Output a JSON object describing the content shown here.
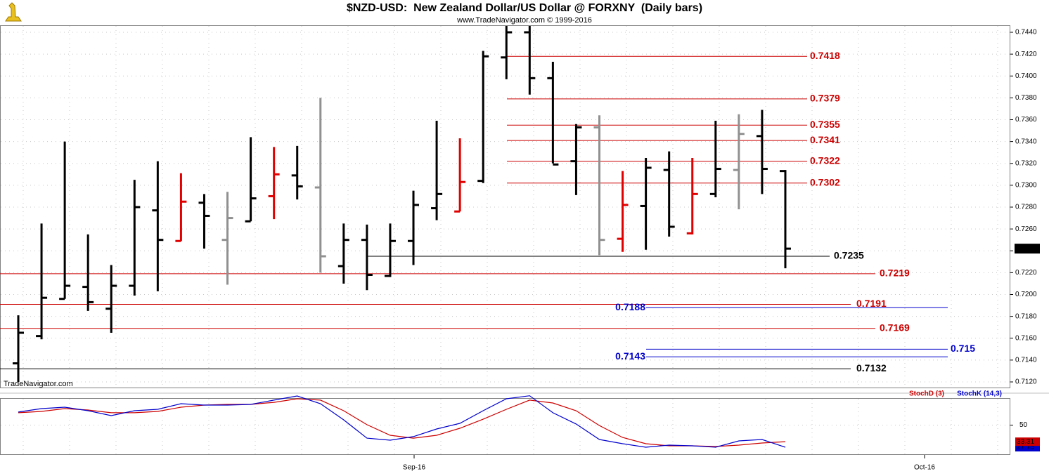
{
  "chart_data": {
    "type": "ohlc",
    "title": "$NZD-USD:  New Zealand Dollar/US Dollar @ FORXNY  (Daily bars)",
    "subtitle": "www.TradeNavigator.com © 1999-2016",
    "watermark": "TradeNavigator.com",
    "ylim": [
      0.712,
      0.744
    ],
    "yticks": [
      {
        "value": 0.712,
        "label": "0.7120"
      },
      {
        "value": 0.714,
        "label": "0.7140"
      },
      {
        "value": 0.716,
        "label": "0.7160"
      },
      {
        "value": 0.718,
        "label": "0.7180"
      },
      {
        "value": 0.72,
        "label": "0.7200"
      },
      {
        "value": 0.722,
        "label": "0.7220"
      },
      {
        "value": 0.724,
        "label": "0.7240"
      },
      {
        "value": 0.726,
        "label": "0.7260"
      },
      {
        "value": 0.728,
        "label": "0.7280"
      },
      {
        "value": 0.73,
        "label": "0.7300"
      },
      {
        "value": 0.732,
        "label": "0.7320"
      },
      {
        "value": 0.734,
        "label": "0.7340"
      },
      {
        "value": 0.736,
        "label": "0.7360"
      },
      {
        "value": 0.738,
        "label": "0.7380"
      },
      {
        "value": 0.74,
        "label": "0.7400"
      },
      {
        "value": 0.742,
        "label": "0.7420"
      },
      {
        "value": 0.744,
        "label": "0.7440"
      }
    ],
    "x_tick_labels": [
      "Sep-16",
      "Oct-16"
    ],
    "bars": [
      {
        "open": 0.7137,
        "high": 0.7181,
        "low": 0.712,
        "close": 0.7165,
        "color": "#000000"
      },
      {
        "open": 0.7162,
        "high": 0.7265,
        "low": 0.7159,
        "close": 0.7197,
        "color": "#000000"
      },
      {
        "open": 0.7196,
        "high": 0.734,
        "low": 0.7196,
        "close": 0.7208,
        "color": "#000000"
      },
      {
        "open": 0.7207,
        "high": 0.7255,
        "low": 0.7185,
        "close": 0.7193,
        "color": "#000000"
      },
      {
        "open": 0.7187,
        "high": 0.7227,
        "low": 0.7165,
        "close": 0.7208,
        "color": "#000000"
      },
      {
        "open": 0.7208,
        "high": 0.7305,
        "low": 0.7199,
        "close": 0.728,
        "color": "#000000"
      },
      {
        "open": 0.7277,
        "high": 0.7322,
        "low": 0.7203,
        "close": 0.725,
        "color": "#000000"
      },
      {
        "open": 0.7249,
        "high": 0.7311,
        "low": 0.7249,
        "close": 0.7285,
        "color": "#e00000"
      },
      {
        "open": 0.7284,
        "high": 0.7292,
        "low": 0.7242,
        "close": 0.7272,
        "color": "#000000"
      },
      {
        "open": 0.725,
        "high": 0.7294,
        "low": 0.7209,
        "close": 0.727,
        "color": "#909090"
      },
      {
        "open": 0.7267,
        "high": 0.7344,
        "low": 0.7267,
        "close": 0.7288,
        "color": "#000000"
      },
      {
        "open": 0.729,
        "high": 0.7335,
        "low": 0.7269,
        "close": 0.731,
        "color": "#e00000"
      },
      {
        "open": 0.7309,
        "high": 0.7336,
        "low": 0.7287,
        "close": 0.7299,
        "color": "#000000"
      },
      {
        "open": 0.7298,
        "high": 0.738,
        "low": 0.722,
        "close": 0.7235,
        "color": "#909090"
      },
      {
        "open": 0.7226,
        "high": 0.7265,
        "low": 0.721,
        "close": 0.725,
        "color": "#000000"
      },
      {
        "open": 0.725,
        "high": 0.7264,
        "low": 0.7204,
        "close": 0.7218,
        "color": "#000000"
      },
      {
        "open": 0.7217,
        "high": 0.7265,
        "low": 0.7216,
        "close": 0.7249,
        "color": "#000000"
      },
      {
        "open": 0.7249,
        "high": 0.7295,
        "low": 0.7227,
        "close": 0.7282,
        "color": "#000000"
      },
      {
        "open": 0.7279,
        "high": 0.7359,
        "low": 0.7268,
        "close": 0.7292,
        "color": "#000000"
      },
      {
        "open": 0.7276,
        "high": 0.7343,
        "low": 0.7276,
        "close": 0.7303,
        "color": "#e00000"
      },
      {
        "open": 0.7304,
        "high": 0.7423,
        "low": 0.7302,
        "close": 0.7418,
        "color": "#000000"
      },
      {
        "open": 0.7417,
        "high": 0.7446,
        "low": 0.7397,
        "close": 0.744,
        "color": "#000000"
      },
      {
        "open": 0.744,
        "high": 0.7446,
        "low": 0.7383,
        "close": 0.7398,
        "color": "#000000"
      },
      {
        "open": 0.7398,
        "high": 0.7413,
        "low": 0.732,
        "close": 0.7319,
        "color": "#000000"
      },
      {
        "open": 0.7322,
        "high": 0.7356,
        "low": 0.7291,
        "close": 0.7353,
        "color": "#000000"
      },
      {
        "open": 0.7353,
        "high": 0.7364,
        "low": 0.7236,
        "close": 0.725,
        "color": "#909090"
      },
      {
        "open": 0.7251,
        "high": 0.7313,
        "low": 0.7239,
        "close": 0.7282,
        "color": "#e00000"
      },
      {
        "open": 0.7281,
        "high": 0.7325,
        "low": 0.7241,
        "close": 0.7316,
        "color": "#000000"
      },
      {
        "open": 0.7314,
        "high": 0.7331,
        "low": 0.7253,
        "close": 0.7262,
        "color": "#000000"
      },
      {
        "open": 0.7256,
        "high": 0.7325,
        "low": 0.7255,
        "close": 0.7292,
        "color": "#e00000"
      },
      {
        "open": 0.7292,
        "high": 0.7359,
        "low": 0.7289,
        "close": 0.7315,
        "color": "#000000"
      },
      {
        "open": 0.7314,
        "high": 0.7365,
        "low": 0.7278,
        "close": 0.7347,
        "color": "#909090"
      },
      {
        "open": 0.7345,
        "high": 0.7369,
        "low": 0.7292,
        "close": 0.7315,
        "color": "#000000"
      },
      {
        "open": 0.7313,
        "high": 0.7314,
        "low": 0.7224,
        "close": 0.7242,
        "color": "#000000"
      }
    ],
    "last_price": 0.7242,
    "levels": [
      {
        "value": 0.7418,
        "color": "#cc0000"
      },
      {
        "value": 0.7379,
        "color": "#cc0000"
      },
      {
        "value": 0.7355,
        "color": "#cc0000"
      },
      {
        "value": 0.7341,
        "color": "#cc0000"
      },
      {
        "value": 0.7322,
        "color": "#cc0000"
      },
      {
        "value": 0.7302,
        "color": "#cc0000"
      },
      {
        "value": 0.7235,
        "color": "#000000"
      },
      {
        "value": 0.7219,
        "color": "#cc0000"
      },
      {
        "value": 0.7191,
        "color": "#cc0000"
      },
      {
        "value": 0.7188,
        "color": "#0000cc"
      },
      {
        "value": 0.7169,
        "color": "#cc0000"
      },
      {
        "value": 0.715,
        "color": "#0000cc"
      },
      {
        "value": 0.7143,
        "color": "#0000cc"
      },
      {
        "value": 0.7132,
        "color": "#000000"
      }
    ],
    "stochastic": {
      "ylim": [
        20,
        80
      ],
      "yticks": [
        50
      ],
      "series": [
        {
          "name": "StochD (3)",
          "color": "#cc0000",
          "values": [
            62.4,
            63.8,
            66.6,
            65.2,
            62.4,
            62.4,
            63.8,
            68.0,
            70.1,
            70.8,
            70.8,
            72.9,
            76.5,
            75.1,
            64.5,
            50.4,
            39.8,
            36.9,
            39.8,
            46.8,
            55.9,
            65.9,
            75.1,
            72.2,
            64.5,
            49.6,
            37.6,
            31.3,
            29.2,
            29.2,
            28.5,
            29.9,
            32.0,
            33.31
          ]
        },
        {
          "name": "StochK (14,3)",
          "color": "#0000cc",
          "values": [
            63.1,
            66.6,
            68.0,
            64.5,
            59.5,
            64.5,
            65.9,
            71.5,
            70.1,
            70.1,
            70.8,
            75.1,
            79.3,
            71.5,
            55.3,
            36.9,
            34.8,
            38.4,
            46.1,
            51.8,
            64.5,
            76.5,
            79.5,
            62.4,
            51.1,
            35.5,
            31.3,
            27.8,
            29.9,
            29.2,
            27.8,
            34.1,
            35.5,
            27.75
          ]
        }
      ]
    }
  }
}
